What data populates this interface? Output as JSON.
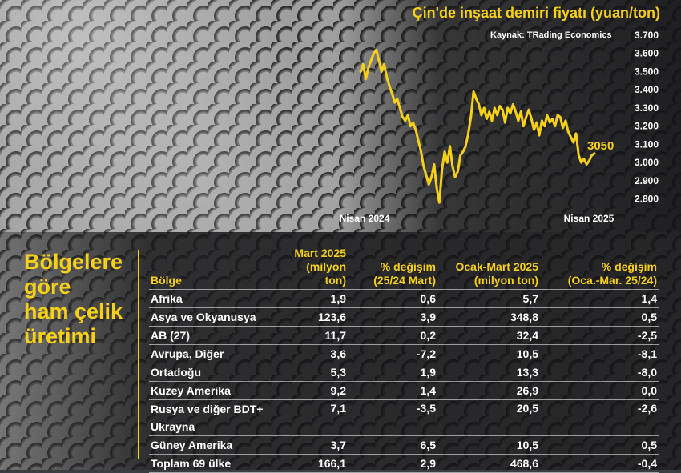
{
  "chart_data": {
    "type": "line",
    "title": "Çin'de inşaat demiri fiyatı (yuan/ton)",
    "source": "Kaynak: TRading Economics",
    "ylim": [
      2750,
      3700
    ],
    "yticks": [
      2800,
      2900,
      3000,
      3100,
      3200,
      3300,
      3400,
      3500,
      3600,
      3700
    ],
    "ytick_labels": [
      "2.800",
      "2.900",
      "3.000",
      "3.100",
      "3.200",
      "3.300",
      "3.400",
      "3.500",
      "3.600",
      "3.700"
    ],
    "x_labels": [
      "Nisan 2024",
      "Nisan 2025"
    ],
    "last_value_label": "3050",
    "grid": false,
    "series": [
      {
        "color": "#f7d117",
        "values": [
          3500,
          3540,
          3460,
          3520,
          3560,
          3600,
          3620,
          3560,
          3500,
          3540,
          3470,
          3420,
          3380,
          3330,
          3350,
          3300,
          3250,
          3230,
          3260,
          3200,
          3220,
          3180,
          3120,
          3060,
          2980,
          2930,
          2880,
          2920,
          2990,
          2860,
          2780,
          2960,
          3060,
          3000,
          3090,
          2980,
          2920,
          2950,
          3040,
          3060,
          3090,
          3160,
          3250,
          3390,
          3350,
          3320,
          3260,
          3300,
          3240,
          3280,
          3230,
          3300,
          3260,
          3310,
          3290,
          3220,
          3300,
          3270,
          3320,
          3280,
          3230,
          3280,
          3200,
          3250,
          3290,
          3240,
          3180,
          3220,
          3150,
          3230,
          3200,
          3260,
          3220,
          3240,
          3200,
          3260,
          3250,
          3190,
          3230,
          3170,
          3140,
          3110,
          3160,
          3040,
          3000,
          3020,
          2990,
          3010,
          3040,
          3050
        ]
      }
    ]
  },
  "table": {
    "side_title": [
      "Bölgelere",
      "göre",
      "ham çelik",
      "üretimi"
    ],
    "headers": {
      "region": "Bölge",
      "col1": [
        "Mart 2025",
        "(milyon ton)"
      ],
      "col2": [
        "% değişim",
        "(25/24 Mart)"
      ],
      "col3": [
        "Ocak-Mart 2025",
        "(milyon ton)"
      ],
      "col4": [
        "% değişim",
        "(Oca.-Mar. 25/24)"
      ]
    },
    "rows": [
      {
        "region": "Afrika",
        "mar2025": "1,9",
        "chg_mar": "0,6",
        "q1_2025": "5,7",
        "chg_q1": "1,4"
      },
      {
        "region": "Asya ve Okyanusya",
        "mar2025": "123,6",
        "chg_mar": "3,9",
        "q1_2025": "348,8",
        "chg_q1": "0,5"
      },
      {
        "region": "AB (27)",
        "mar2025": "11,7",
        "chg_mar": "0,2",
        "q1_2025": "32,4",
        "chg_q1": "-2,5"
      },
      {
        "region": "Avrupa, Diğer",
        "mar2025": "3,6",
        "chg_mar": "-7,2",
        "q1_2025": "10,5",
        "chg_q1": "-8,1"
      },
      {
        "region": "Ortadoğu",
        "mar2025": "5,3",
        "chg_mar": "1,9",
        "q1_2025": "13,3",
        "chg_q1": "-8,0"
      },
      {
        "region": "Kuzey Amerika",
        "mar2025": "9,2",
        "chg_mar": "1,4",
        "q1_2025": "26,9",
        "chg_q1": "0,0"
      },
      {
        "region": "Rusya ve diğer BDT+ Ukrayna",
        "mar2025": "7,1",
        "chg_mar": "-3,5",
        "q1_2025": "20,5",
        "chg_q1": "-2,6"
      },
      {
        "region": "Güney Amerika",
        "mar2025": "3,7",
        "chg_mar": "6,5",
        "q1_2025": "10,5",
        "chg_q1": "0,5"
      },
      {
        "region": "Toplam 69 ülke",
        "mar2025": "166,1",
        "chg_mar": "2,9",
        "q1_2025": "468,6",
        "chg_q1": "-0,4"
      }
    ]
  }
}
